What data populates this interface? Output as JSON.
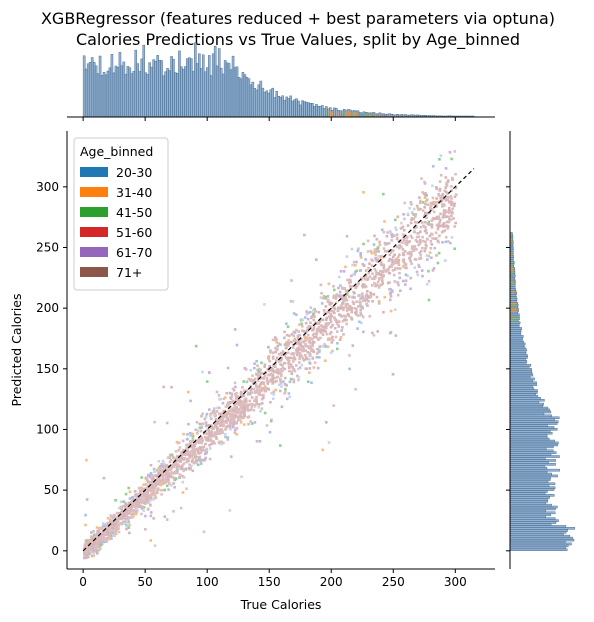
{
  "chart_data": {
    "type": "scatter",
    "title_line1": "XGBRegressor (features reduced + best parameters via optuna)",
    "title_line2": "Calories Predictions vs True Values, split by Age_binned",
    "xlabel": "True Calories",
    "ylabel": "Predicted Calories",
    "xlim": [
      -13,
      332
    ],
    "ylim": [
      -15,
      346
    ],
    "xticks": [
      0,
      50,
      100,
      150,
      200,
      250,
      300
    ],
    "yticks": [
      0,
      50,
      100,
      150,
      200,
      250,
      300
    ],
    "xtick_labels": [
      "0",
      "50",
      "100",
      "150",
      "200",
      "250",
      "300"
    ],
    "ytick_labels": [
      "0",
      "50",
      "100",
      "150",
      "200",
      "250",
      "300"
    ],
    "reference_line": {
      "from": [
        0,
        0
      ],
      "to": [
        315,
        315
      ],
      "style": "dashed",
      "color": "#000000"
    },
    "legend": {
      "title": "Age_binned",
      "placement": "top-left",
      "entries": [
        {
          "name": "20-30",
          "color": "#1f77b4"
        },
        {
          "name": "31-40",
          "color": "#ff7f0e"
        },
        {
          "name": "41-50",
          "color": "#2ca02c"
        },
        {
          "name": "51-60",
          "color": "#d62728"
        },
        {
          "name": "61-70",
          "color": "#9467bd"
        },
        {
          "name": "71+",
          "color": "#8c564b"
        }
      ]
    },
    "density_band": {
      "description_x": [
        0,
        25,
        50,
        75,
        100,
        125,
        150,
        175,
        200,
        225,
        250,
        275,
        300
      ],
      "center_y": [
        0,
        24,
        48,
        73,
        98,
        123,
        148,
        172,
        196,
        221,
        245,
        268,
        290
      ]
    },
    "marginal_x_histogram": {
      "x_range": [
        0,
        315
      ],
      "peak_region": [
        10,
        120
      ]
    },
    "marginal_y_histogram": {
      "y_range": [
        0,
        262
      ],
      "peak_region": [
        0,
        20
      ]
    }
  }
}
